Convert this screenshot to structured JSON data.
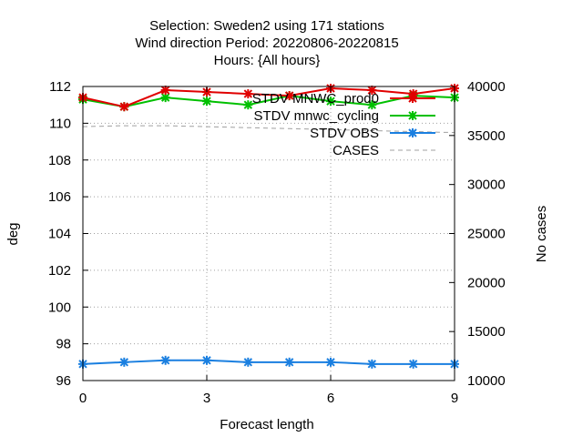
{
  "chart_data": {
    "type": "line",
    "title_lines": [
      "Selection: Sweden2 using   171 stations",
      "Wind direction   Period: 20220806-20220815",
      "Hours: {All hours}"
    ],
    "xlabel": "Forecast length",
    "ylabel": "deg",
    "y2label": "No cases",
    "xlim": [
      0,
      9
    ],
    "ylim": [
      96,
      112
    ],
    "y2lim": [
      10000,
      40000
    ],
    "x_ticks": [
      0,
      3,
      6,
      9
    ],
    "y_ticks": [
      96,
      98,
      100,
      102,
      104,
      106,
      108,
      110,
      112
    ],
    "y2_ticks": [
      10000,
      15000,
      20000,
      25000,
      30000,
      35000,
      40000
    ],
    "grid": true,
    "legend_position": "top-right",
    "x": [
      0,
      1,
      2,
      3,
      4,
      5,
      6,
      7,
      8,
      9
    ],
    "series": [
      {
        "name": "STDV MNWC_prod0",
        "axis": "y",
        "color": "#e00000",
        "style": "solid-marker",
        "values": [
          111.4,
          110.9,
          111.8,
          111.7,
          111.6,
          111.5,
          111.9,
          111.8,
          111.6,
          111.9
        ]
      },
      {
        "name": "STDV mnwc_cycling",
        "axis": "y",
        "color": "#00c000",
        "style": "solid-marker",
        "values": [
          111.3,
          110.9,
          111.4,
          111.2,
          111.0,
          111.5,
          111.2,
          111.0,
          111.5,
          111.4
        ]
      },
      {
        "name": "STDV OBS",
        "axis": "y",
        "color": "#1a7fe0",
        "style": "solid-marker",
        "values": [
          96.9,
          97.0,
          97.1,
          97.1,
          97.0,
          97.0,
          97.0,
          96.9,
          96.9,
          96.9
        ]
      },
      {
        "name": "CASES",
        "axis": "y2",
        "color": "#a0a0a0",
        "style": "dashed",
        "values": [
          35900,
          36000,
          36000,
          35900,
          35800,
          35700,
          35600,
          35500,
          35400,
          35300
        ]
      }
    ]
  }
}
